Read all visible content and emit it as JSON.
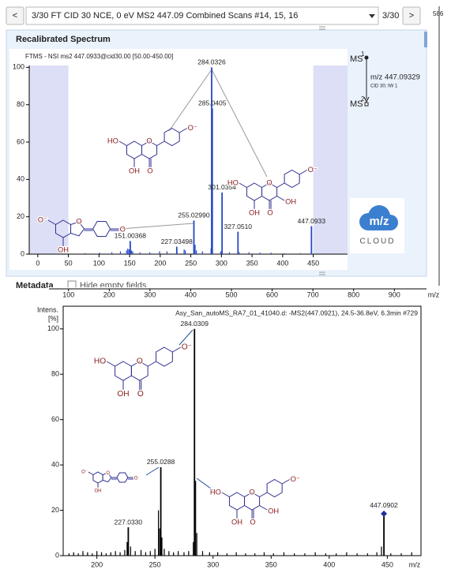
{
  "window": {
    "nav_prev": "<",
    "scan_select": "3/30 FT CID 30 NCE, 0 eV MS2 447.09 Combined Scans  #14, 15, 16",
    "scan_position": "3/30",
    "nav_next": ">",
    "corner_number": "586",
    "section_title": "Recalibrated Spectrum",
    "metadata": "Metadata",
    "hide_empty": "Hide empty fields",
    "ms_tree": {
      "ms1": "MS",
      "ms1_level": "1",
      "precursor": "m/z 447.09329",
      "activation": "CID 30; IW 1",
      "ms2": "MS",
      "ms2_level": "2"
    },
    "logo": {
      "mz": "m/z",
      "name": "CLOUD"
    }
  },
  "chart_data": [
    {
      "type": "spectrum",
      "title": "FTMS - NSI ms2 447.0933@cid30.00 [50.00-450.00]",
      "color": "#2448c8",
      "shade_color": "#dcdff5",
      "scan_range": [
        50,
        450
      ],
      "grid": false,
      "xlim": [
        -14,
        506
      ],
      "xticks": [
        0,
        50,
        100,
        150,
        200,
        250,
        300,
        350,
        400,
        450
      ],
      "ylim": [
        0,
        101
      ],
      "yticks": [
        0,
        20,
        40,
        60,
        80,
        100
      ],
      "peaks": {
        "x": [
          151.00368,
          227.03498,
          255.0299,
          284.0326,
          285.0405,
          301.0354,
          327.051,
          447.0933
        ],
        "x_labels": [
          "151.00368",
          "227.03498",
          "255.02990",
          "284.0326",
          "285.0405",
          "301.0354",
          "327.0510",
          "447.0933"
        ],
        "values": [
          7,
          4,
          18,
          100,
          78,
          33,
          12,
          15
        ]
      },
      "minor_peaks": {
        "x": [
          77,
          101,
          121,
          135,
          145,
          147,
          149,
          153,
          155,
          167,
          183,
          199,
          211,
          239,
          241,
          257,
          259,
          269,
          283,
          299,
          313,
          329,
          345,
          363,
          381,
          403,
          429
        ],
        "values": [
          0.5,
          0.8,
          1,
          1.5,
          2,
          3,
          2.5,
          2,
          1.5,
          1,
          1,
          1.5,
          1.5,
          2.5,
          2,
          5,
          2,
          1.5,
          3,
          1.5,
          1,
          1,
          1,
          0.8,
          0.8,
          0.5,
          0.5
        ]
      },
      "structure_color": "#2e2e8f",
      "structures": [
        {
          "kind": "flavone",
          "atoms": {
            "a7": "HO",
            "a5": "OH",
            "o1": "O",
            "o4": "O",
            "b4": "O⁻"
          }
        },
        {
          "kind": "aurone",
          "atoms": {
            "a_o": "O⁻",
            "a_oh": "OH",
            "ring_o": "O",
            "q_o": "O"
          }
        },
        {
          "kind": "flavone",
          "atoms": {
            "a7": "HO",
            "a5": "OH",
            "o1": "O",
            "o4": "O",
            "c3": "OH",
            "b4": "O⁻"
          }
        }
      ]
    },
    {
      "type": "axis",
      "xlim": [
        52,
        979
      ],
      "xticks": [
        100,
        200,
        300,
        400,
        500,
        600,
        700,
        800,
        900
      ],
      "x_label": "m/z"
    },
    {
      "type": "spectrum",
      "title": "Asy_San_autoMS_RA7_01_41040.d: -MS2(447.0921), 24.5-36.8eV, 6.3min #729",
      "color": "#000000",
      "grid": false,
      "y_label_lines": [
        "Intens.",
        "[%]"
      ],
      "x_label": "m/z",
      "xlim": [
        171,
        479
      ],
      "xticks": [
        200,
        250,
        300,
        350,
        400,
        450
      ],
      "ylim": [
        0,
        110
      ],
      "yticks": [
        0,
        20,
        40,
        60,
        80,
        100
      ],
      "peaks": {
        "x": [
          227.033,
          255.0288,
          284.0309
        ],
        "x_labels": [
          "227.0330",
          "255.0288",
          "284.0309"
        ],
        "values": [
          12.5,
          39,
          100
        ]
      },
      "precursor": {
        "x": 447.0902,
        "x_label": "447.0902",
        "value": 18.5,
        "marker": "diamond",
        "color": "#1f2f9c"
      },
      "minor_peaks": {
        "x": [
          176,
          180,
          184,
          188,
          192,
          196,
          200,
          204,
          208,
          212,
          216,
          220,
          224,
          226,
          229,
          233,
          238,
          242,
          246,
          250,
          253,
          254,
          256,
          258,
          262,
          266,
          270,
          275,
          279,
          283,
          285,
          286,
          291,
          297,
          304,
          312,
          320,
          328,
          336,
          344,
          352,
          361,
          370,
          379,
          388,
          397,
          406,
          415,
          424,
          433,
          441,
          445,
          453,
          462,
          471
        ],
        "values": [
          1,
          1.5,
          1,
          2,
          1.5,
          1,
          2,
          1.5,
          1,
          1.5,
          2,
          1.5,
          2.5,
          6,
          4,
          2,
          2.5,
          1.5,
          2,
          3,
          20,
          12,
          8,
          3,
          2,
          1.5,
          2,
          1.5,
          2,
          6,
          33,
          10,
          2,
          1.5,
          1.5,
          1,
          1.5,
          1,
          1,
          1.5,
          1,
          1.5,
          1,
          1,
          1.5,
          1,
          1,
          1.5,
          1,
          1,
          1.5,
          4,
          1,
          1,
          1.5
        ]
      },
      "structure_color": "#2e2e8f",
      "structures": [
        {
          "kind": "flavone",
          "atoms": {
            "a7": "HO",
            "a5": "OH",
            "o1": "O",
            "o4": "O",
            "b4": "O⁻"
          }
        },
        {
          "kind": "aurone",
          "atoms": {
            "a_o": "O⁻",
            "a_oh": "OH",
            "ring_o": "O",
            "q_o": "O"
          }
        },
        {
          "kind": "flavone",
          "atoms": {
            "a7": "HO",
            "a5": "OH",
            "o1": "O",
            "o4": "O",
            "c3": "OH",
            "b4": "O⁻"
          }
        }
      ]
    }
  ]
}
